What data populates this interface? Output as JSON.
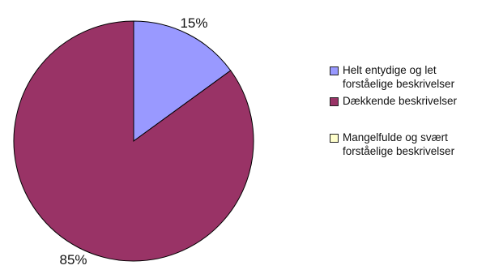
{
  "chart_data": {
    "type": "pie",
    "categories": [
      "Helt entydige og let forståelige beskrivelser",
      "Dækkende beskrivelser",
      "Mangelfulde og svært forståelige beskrivelser"
    ],
    "values": [
      15,
      85,
      0
    ],
    "value_labels": [
      "15%",
      "85%",
      ""
    ],
    "colors": [
      "#9999ff",
      "#993366",
      "#ffffcc"
    ],
    "slice_edge_color": "#000000",
    "legend_position": "right"
  }
}
